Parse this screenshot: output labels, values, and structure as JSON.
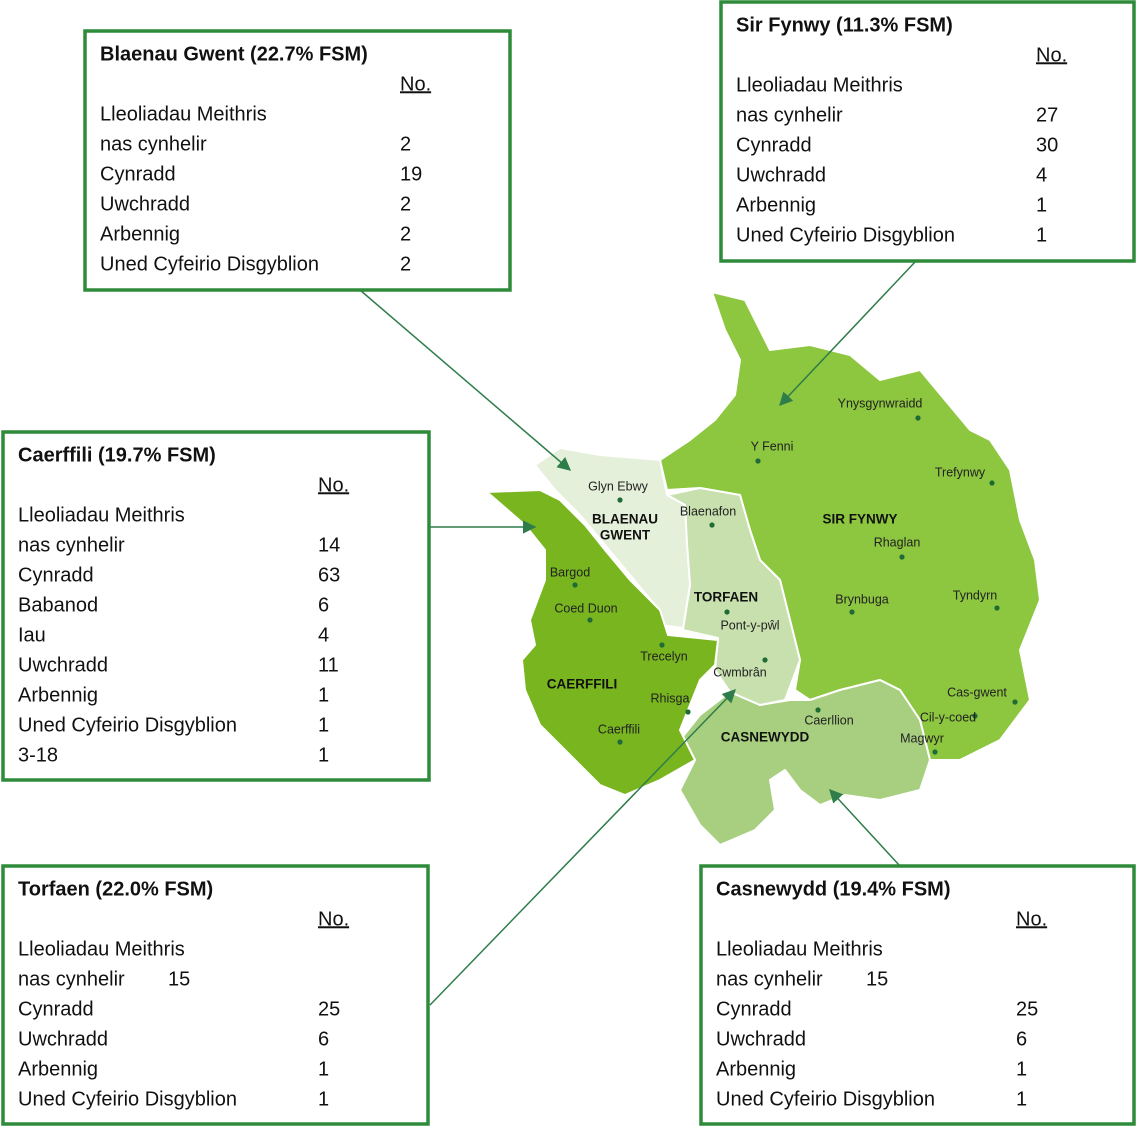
{
  "boxes": [
    {
      "title": "Blaenau Gwent (22.7% FSM)",
      "header": "No.",
      "rows": [
        [
          "Lleoliadau Meithris"
        ],
        [
          "nas cynhelir",
          2
        ],
        [
          "Cynradd",
          19
        ],
        [
          "Uwchradd",
          2
        ],
        [
          "Arbennig",
          2
        ],
        [
          "Uned Cyfeirio Disgyblion",
          2
        ]
      ]
    },
    {
      "title": "Sir Fynwy (11.3% FSM)",
      "header": "No.",
      "rows": [
        [
          "Lleoliadau Meithris"
        ],
        [
          "nas cynhelir",
          27
        ],
        [
          "Cynradd",
          30
        ],
        [
          "Uwchradd",
          4
        ],
        [
          "Arbennig",
          1
        ],
        [
          "Uned Cyfeirio Disgyblion",
          1
        ]
      ]
    },
    {
      "title": "Caerffili (19.7% FSM)",
      "header": "No.",
      "rows": [
        [
          "Lleoliadau Meithris"
        ],
        [
          "nas cynhelir",
          14
        ],
        [
          "Cynradd",
          63
        ],
        [
          "Babanod",
          6
        ],
        [
          "Iau",
          4
        ],
        [
          "Uwchradd",
          11
        ],
        [
          "Arbennig",
          1
        ],
        [
          "Uned Cyfeirio Disgyblion",
          1
        ],
        [
          "3-18",
          1
        ]
      ]
    },
    {
      "title": "Torfaen (22.0% FSM)",
      "header": "No.",
      "rows": [
        [
          "Lleoliadau Meithris"
        ],
        [
          "nas cynhelir",
          15
        ],
        [
          "Cynradd",
          25
        ],
        [
          "Uwchradd",
          6
        ],
        [
          "Arbennig",
          1
        ],
        [
          "Uned Cyfeirio Disgyblion",
          1
        ]
      ]
    },
    {
      "title": "Casnewydd (19.4% FSM)",
      "header": "No.",
      "rows": [
        [
          "Lleoliadau Meithris"
        ],
        [
          "nas cynhelir",
          15
        ],
        [
          "Cynradd",
          25
        ],
        [
          "Uwchradd",
          6
        ],
        [
          "Arbennig",
          1
        ],
        [
          "Uned Cyfeirio Disgyblion",
          1
        ]
      ]
    }
  ],
  "map": {
    "regions": [
      [
        "BLAENAU",
        "GWENT"
      ],
      [
        "SIR FYNWY"
      ],
      [
        "TORFAEN"
      ],
      [
        "CAERFFILI"
      ],
      [
        "CASNEWYDD"
      ]
    ],
    "places": [
      "Glyn Ebwy",
      "Blaenafon",
      "Bargod",
      "Coed Duon",
      "Trecelyn",
      "Rhisga",
      "Caerffili",
      "Pont-y-pŵl",
      "Cwmbrân",
      "Caerllion",
      "Y Fenni",
      "Ynysgynwraidd",
      "Trefynwy",
      "Rhaglan",
      "Brynbuga",
      "Tyndyrn",
      "Cas-gwent",
      "Cil-y-coed",
      "Magwyr"
    ]
  }
}
